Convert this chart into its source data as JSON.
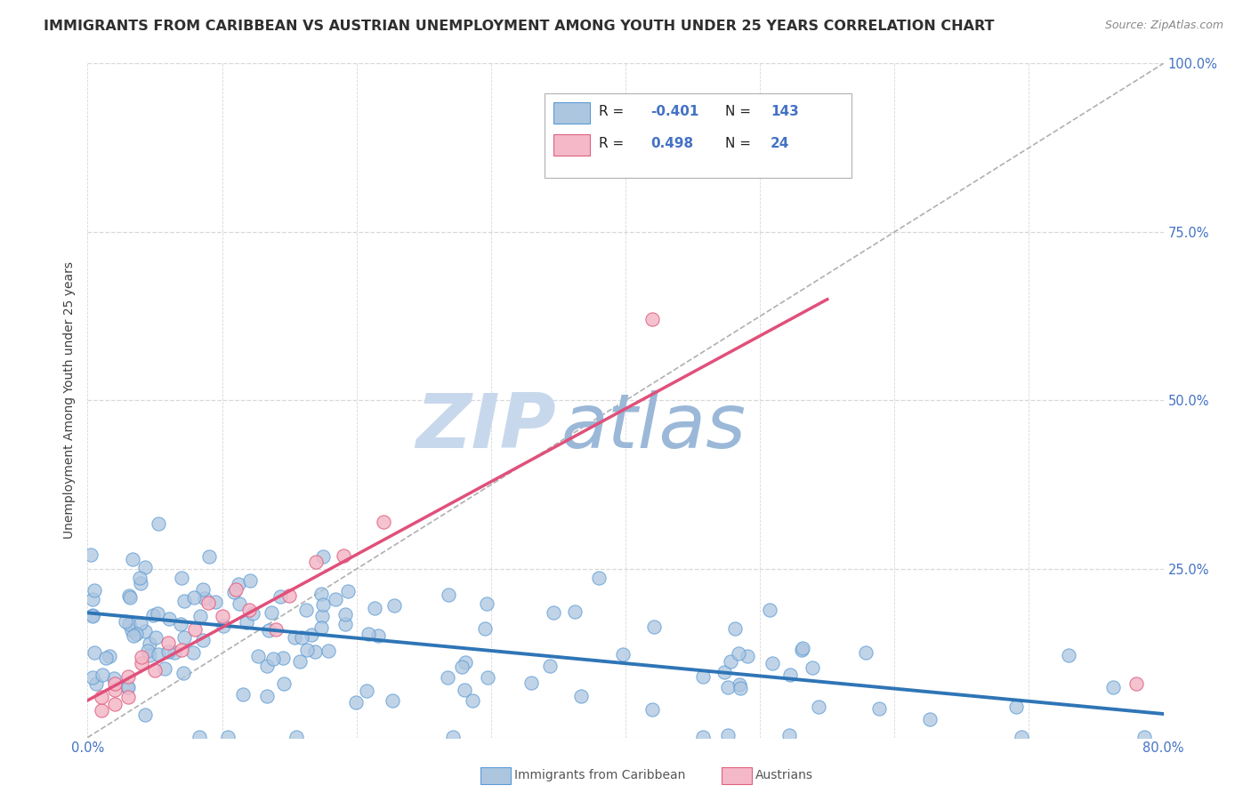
{
  "title": "IMMIGRANTS FROM CARIBBEAN VS AUSTRIAN UNEMPLOYMENT AMONG YOUTH UNDER 25 YEARS CORRELATION CHART",
  "source": "Source: ZipAtlas.com",
  "ylabel": "Unemployment Among Youth under 25 years",
  "xlim": [
    0.0,
    0.8
  ],
  "ylim": [
    0.0,
    1.0
  ],
  "xticks": [
    0.0,
    0.1,
    0.2,
    0.3,
    0.4,
    0.5,
    0.6,
    0.7,
    0.8
  ],
  "yticks": [
    0.0,
    0.25,
    0.5,
    0.75,
    1.0
  ],
  "scatter_blue_fill": "#adc6e0",
  "scatter_blue_edge": "#5b9bd5",
  "scatter_pink_fill": "#f4b8c8",
  "scatter_pink_edge": "#e06080",
  "line_blue_color": "#2e75b6",
  "line_pink_color": "#e0507a",
  "ref_line_color": "#b0b0b0",
  "watermark_zip": "ZIP",
  "watermark_atlas": "atlas",
  "watermark_color_zip": "#c8d8ec",
  "watermark_color_atlas": "#9bb8d8",
  "blue_line_x": [
    0.0,
    0.8
  ],
  "blue_line_y": [
    0.185,
    0.035
  ],
  "pink_line_x": [
    0.0,
    0.55
  ],
  "pink_line_y": [
    0.055,
    0.65
  ],
  "background_color": "#ffffff",
  "grid_color": "#d8d8d8",
  "axis_color": "#4472c4",
  "title_color": "#2f2f2f",
  "ylabel_color": "#404040",
  "legend_box_color": "#f0f0f0",
  "legend_edge_color": "#b0b0b0"
}
